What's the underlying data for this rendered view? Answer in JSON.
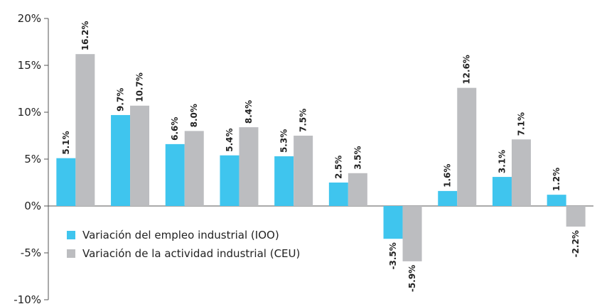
{
  "chart_data": {
    "type": "bar",
    "categories": [
      "",
      "",
      "",
      "",
      "",
      "",
      "",
      "",
      "",
      ""
    ],
    "series": [
      {
        "name": "Variación del empleo industrial (IOO)",
        "color": "#3fc5ee",
        "values": [
          5.1,
          9.7,
          6.6,
          5.4,
          5.3,
          2.5,
          -3.5,
          1.6,
          3.1,
          1.2
        ],
        "labels": [
          "5.1%",
          "9.7%",
          "6.6%",
          "5.4%",
          "5.3%",
          "2.5%",
          "-3.5%",
          "1.6%",
          "3.1%",
          "1.2%"
        ]
      },
      {
        "name": "Variación de la actividad industrial (CEU)",
        "color": "#bcbdc0",
        "values": [
          16.2,
          10.7,
          8.0,
          8.4,
          7.5,
          3.5,
          -5.9,
          12.6,
          7.1,
          -2.2
        ],
        "labels": [
          "16.2%",
          "10.7%",
          "8.0%",
          "8.4%",
          "7.5%",
          "3.5%",
          "-5.9%",
          "12.6%",
          "7.1%",
          "-2.2%"
        ]
      }
    ],
    "ylim": [
      -10,
      20
    ],
    "yticks": [
      -10,
      -5,
      0,
      5,
      10,
      15,
      20
    ],
    "ytick_labels": [
      "-10%",
      "-5%",
      "0%",
      "5%",
      "10%",
      "15%",
      "20%"
    ],
    "title": "",
    "xlabel": "",
    "ylabel": "",
    "grid": false,
    "legend_position": "bottom-left"
  }
}
